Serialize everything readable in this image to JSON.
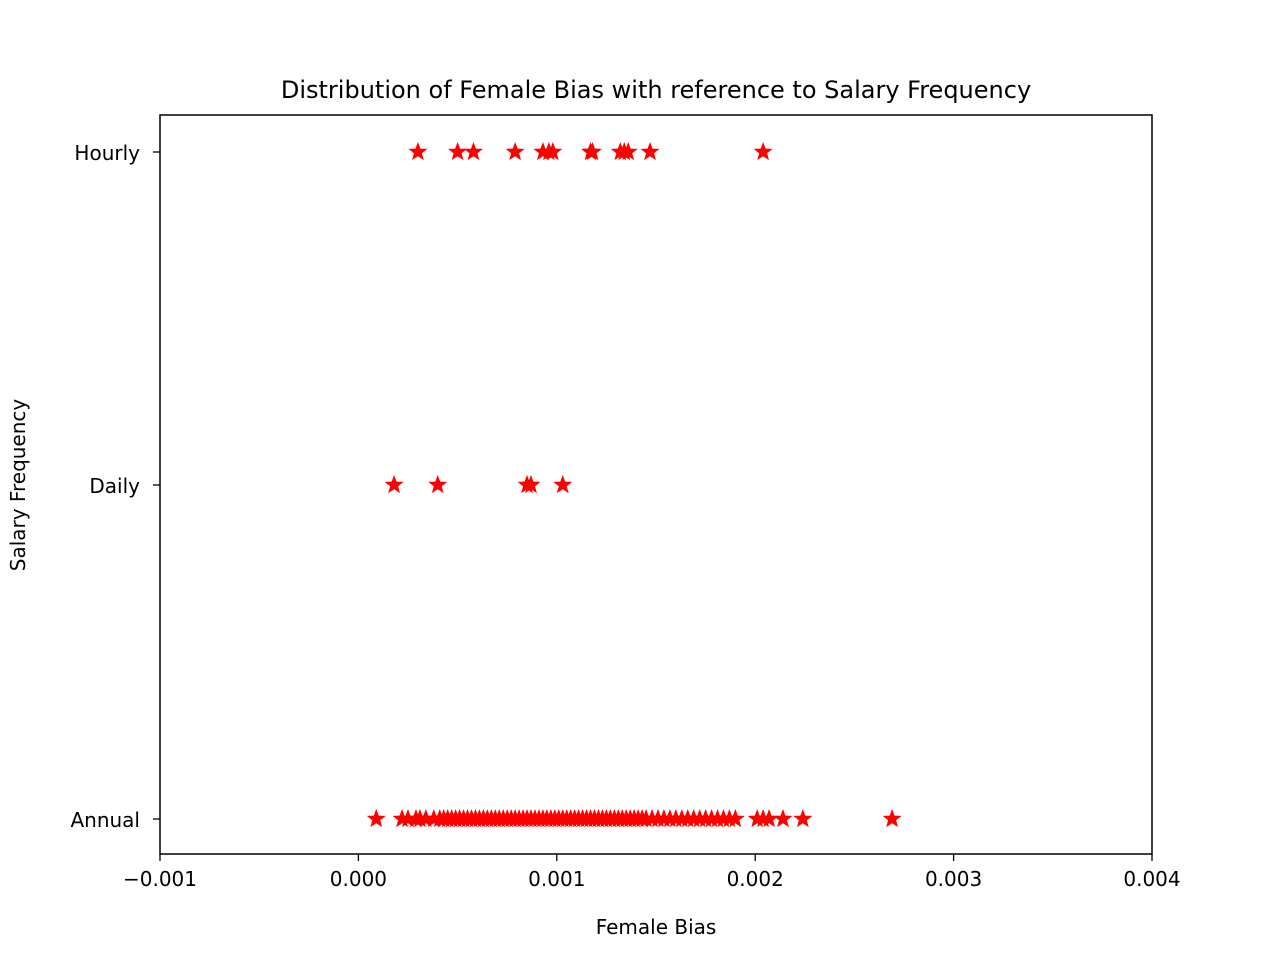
{
  "chart_data": {
    "type": "scatter",
    "title": "Distribution of Female Bias with reference to Salary Frequency",
    "xlabel": "Female Bias",
    "ylabel": "Salary Frequency",
    "xlim": [
      -0.001,
      0.004
    ],
    "x_ticks": [
      -0.001,
      0.0,
      0.001,
      0.002,
      0.003,
      0.004
    ],
    "x_tick_labels": [
      "−0.001",
      "0.000",
      "0.001",
      "0.002",
      "0.003",
      "0.004"
    ],
    "categories": [
      "Annual",
      "Daily",
      "Hourly"
    ],
    "grid": false,
    "marker": "star",
    "color": "#ff0000",
    "series": [
      {
        "category": "Hourly",
        "x": [
          0.0003,
          0.0005,
          0.00058,
          0.00079,
          0.00093,
          0.00096,
          0.00098,
          0.00117,
          0.00118,
          0.00132,
          0.00134,
          0.00136,
          0.00147,
          0.00204
        ]
      },
      {
        "category": "Daily",
        "x": [
          0.00018,
          0.0004,
          0.00085,
          0.00087,
          0.00103
        ]
      },
      {
        "category": "Annual",
        "x": [
          9e-05,
          0.00022,
          0.00025,
          0.00029,
          0.00031,
          0.00034,
          0.00038,
          0.00041,
          0.00043,
          0.00045,
          0.00047,
          0.00049,
          0.00051,
          0.00053,
          0.00055,
          0.00057,
          0.00059,
          0.00061,
          0.00063,
          0.00065,
          0.00067,
          0.00069,
          0.00071,
          0.00073,
          0.00075,
          0.00077,
          0.00079,
          0.00081,
          0.00083,
          0.00085,
          0.00087,
          0.00089,
          0.00091,
          0.00093,
          0.00095,
          0.00097,
          0.00099,
          0.00101,
          0.00103,
          0.00105,
          0.00107,
          0.00109,
          0.00111,
          0.00113,
          0.00115,
          0.00117,
          0.00119,
          0.00121,
          0.00123,
          0.00125,
          0.00127,
          0.00129,
          0.00131,
          0.00133,
          0.00135,
          0.00137,
          0.00139,
          0.00141,
          0.00143,
          0.00145,
          0.00148,
          0.00151,
          0.00154,
          0.00157,
          0.0016,
          0.00163,
          0.00166,
          0.00169,
          0.00172,
          0.00175,
          0.00178,
          0.00181,
          0.00184,
          0.00187,
          0.0019,
          0.00201,
          0.00204,
          0.00207,
          0.00214,
          0.00224,
          0.00269
        ]
      }
    ]
  }
}
